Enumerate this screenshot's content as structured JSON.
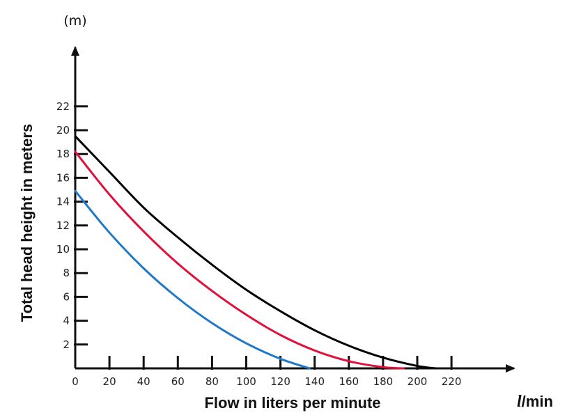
{
  "chart_data": {
    "type": "line",
    "title": "",
    "y_unit": "(m)",
    "ylabel": "Total head height in meters",
    "xlabel": "Flow in liters per minute",
    "x_unit_symbol": "l",
    "x_unit_rest": "/min",
    "xlim": [
      0,
      220
    ],
    "ylim": [
      0,
      22
    ],
    "x_ticks": [
      "0",
      "20",
      "40",
      "60",
      "80",
      "100",
      "120",
      "140",
      "160",
      "180",
      "200",
      "220"
    ],
    "y_ticks": [
      "2",
      "4",
      "6",
      "8",
      "10",
      "12",
      "14",
      "16",
      "18",
      "20",
      "22"
    ],
    "grid": false,
    "legend": "none",
    "series": [
      {
        "color": "#000000",
        "x": [
          0,
          20,
          40,
          60,
          80,
          100,
          120,
          140,
          160,
          180,
          200,
          211
        ],
        "y": [
          19.5,
          16.5,
          13.5,
          11.0,
          8.7,
          6.6,
          4.8,
          3.2,
          1.9,
          0.9,
          0.2,
          0
        ]
      },
      {
        "color": "#e0103a",
        "x": [
          0,
          20,
          40,
          60,
          80,
          100,
          120,
          140,
          160,
          180,
          192
        ],
        "y": [
          18.2,
          14.6,
          11.5,
          8.8,
          6.5,
          4.5,
          2.8,
          1.5,
          0.6,
          0.1,
          0
        ]
      },
      {
        "color": "#1f78c8",
        "x": [
          0,
          20,
          40,
          60,
          80,
          100,
          120,
          137
        ],
        "y": [
          14.9,
          11.4,
          8.4,
          5.9,
          3.8,
          2.1,
          0.8,
          0
        ]
      }
    ]
  }
}
